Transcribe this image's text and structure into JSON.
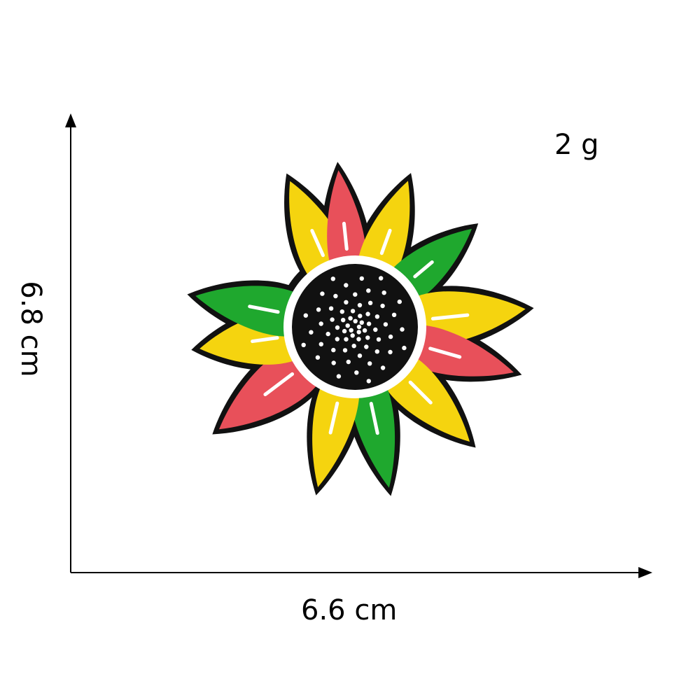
{
  "weight": "2 g",
  "dimensions": {
    "width": "6.6 cm",
    "height": "6.8 cm"
  },
  "product": {
    "icon": "sunflower-patch-icon",
    "colors": {
      "outline": "#111111",
      "yellow": "#F5D40F",
      "green": "#1FA82E",
      "red": "#E8505A",
      "center": "#111111",
      "stitch": "#FFFFFF"
    }
  }
}
